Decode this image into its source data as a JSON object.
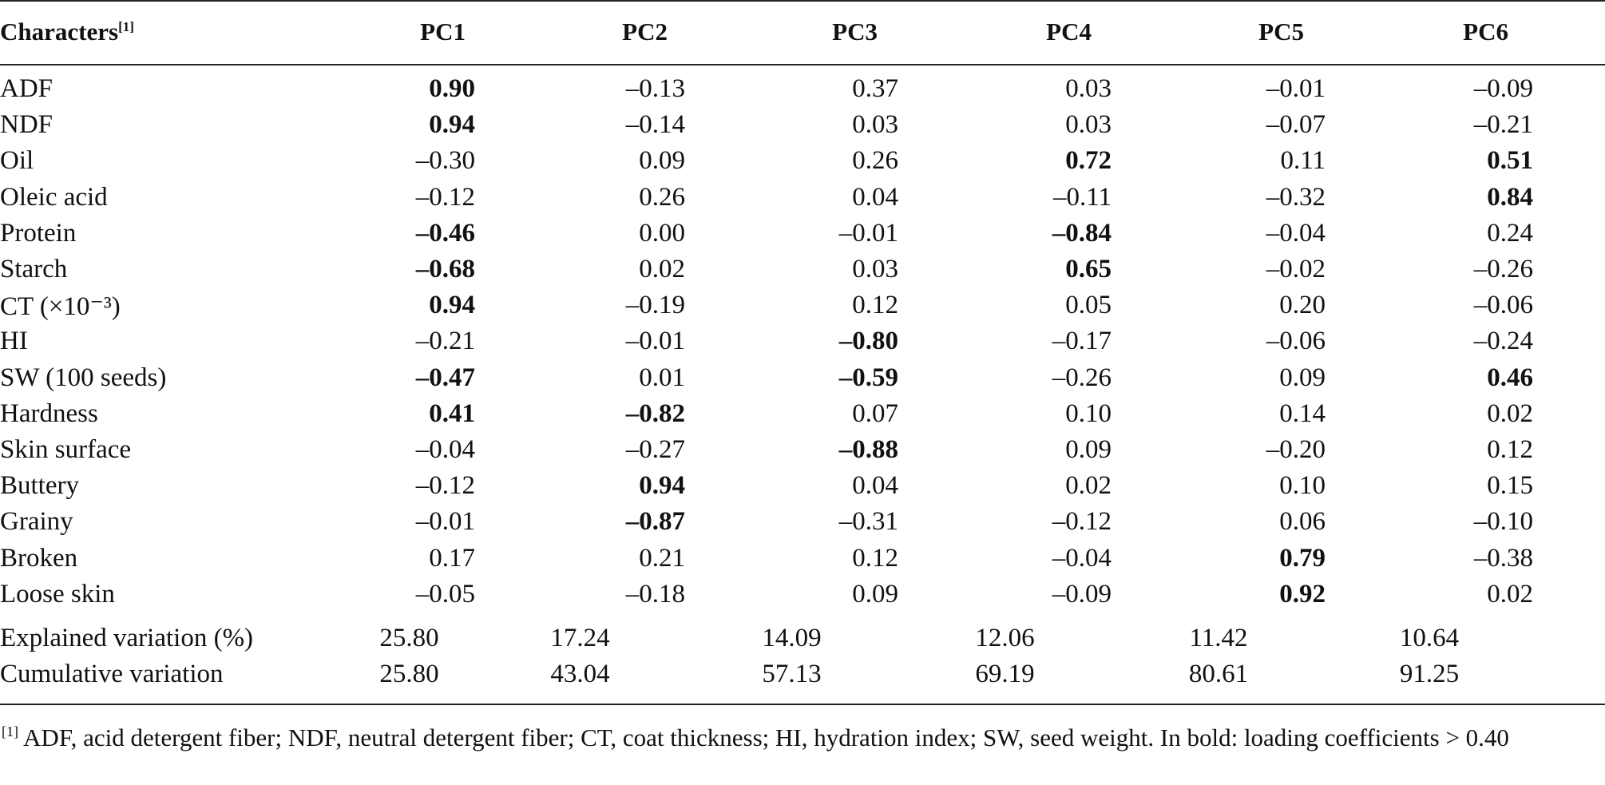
{
  "table": {
    "header": {
      "characters_label": "Characters",
      "footnote_marker": "[1]",
      "columns": [
        "PC1",
        "PC2",
        "PC3",
        "PC4",
        "PC5",
        "PC6"
      ]
    },
    "rows": [
      {
        "name": "ADF",
        "values": [
          "0.90",
          "–0.13",
          "0.37",
          "0.03",
          "–0.01",
          "–0.09"
        ],
        "bold": [
          true,
          false,
          false,
          false,
          false,
          false
        ]
      },
      {
        "name": "NDF",
        "values": [
          "0.94",
          "–0.14",
          "0.03",
          "0.03",
          "–0.07",
          "–0.21"
        ],
        "bold": [
          true,
          false,
          false,
          false,
          false,
          false
        ]
      },
      {
        "name": "Oil",
        "values": [
          "–0.30",
          "0.09",
          "0.26",
          "0.72",
          "0.11",
          "0.51"
        ],
        "bold": [
          false,
          false,
          false,
          true,
          false,
          true
        ]
      },
      {
        "name": "Oleic acid",
        "values": [
          "–0.12",
          "0.26",
          "0.04",
          "–0.11",
          "–0.32",
          "0.84"
        ],
        "bold": [
          false,
          false,
          false,
          false,
          false,
          true
        ]
      },
      {
        "name": "Protein",
        "values": [
          "–0.46",
          "0.00",
          "–0.01",
          "–0.84",
          "–0.04",
          "0.24"
        ],
        "bold": [
          true,
          false,
          false,
          true,
          false,
          false
        ]
      },
      {
        "name": "Starch",
        "values": [
          "–0.68",
          "0.02",
          "0.03",
          "0.65",
          "–0.02",
          "–0.26"
        ],
        "bold": [
          true,
          false,
          false,
          true,
          false,
          false
        ]
      },
      {
        "name": "CT (×10⁻³)",
        "values": [
          "0.94",
          "–0.19",
          "0.12",
          "0.05",
          "0.20",
          "–0.06"
        ],
        "bold": [
          true,
          false,
          false,
          false,
          false,
          false
        ]
      },
      {
        "name": "HI",
        "values": [
          "–0.21",
          "–0.01",
          "–0.80",
          "–0.17",
          "–0.06",
          "–0.24"
        ],
        "bold": [
          false,
          false,
          true,
          false,
          false,
          false
        ]
      },
      {
        "name": "SW (100 seeds)",
        "values": [
          "–0.47",
          "0.01",
          "–0.59",
          "–0.26",
          "0.09",
          "0.46"
        ],
        "bold": [
          true,
          false,
          true,
          false,
          false,
          true
        ]
      },
      {
        "name": "Hardness",
        "values": [
          "0.41",
          "–0.82",
          "0.07",
          "0.10",
          "0.14",
          "0.02"
        ],
        "bold": [
          true,
          true,
          false,
          false,
          false,
          false
        ]
      },
      {
        "name": "Skin surface",
        "values": [
          "–0.04",
          "–0.27",
          "–0.88",
          "0.09",
          "–0.20",
          "0.12"
        ],
        "bold": [
          false,
          false,
          true,
          false,
          false,
          false
        ]
      },
      {
        "name": "Buttery",
        "values": [
          "–0.12",
          "0.94",
          "0.04",
          "0.02",
          "0.10",
          "0.15"
        ],
        "bold": [
          false,
          true,
          false,
          false,
          false,
          false
        ]
      },
      {
        "name": "Grainy",
        "values": [
          "–0.01",
          "–0.87",
          "–0.31",
          "–0.12",
          "0.06",
          "–0.10"
        ],
        "bold": [
          false,
          true,
          false,
          false,
          false,
          false
        ]
      },
      {
        "name": "Broken",
        "values": [
          "0.17",
          "0.21",
          "0.12",
          "–0.04",
          "0.79",
          "–0.38"
        ],
        "bold": [
          false,
          false,
          false,
          false,
          true,
          false
        ]
      },
      {
        "name": "Loose skin",
        "values": [
          "–0.05",
          "–0.18",
          "0.09",
          "–0.09",
          "0.92",
          "0.02"
        ],
        "bold": [
          false,
          false,
          false,
          false,
          true,
          false
        ]
      }
    ],
    "summary": [
      {
        "name": "Explained variation (%)",
        "values": [
          "25.80",
          "17.24",
          "14.09",
          "12.06",
          "11.42",
          "10.64"
        ]
      },
      {
        "name": "Cumulative variation",
        "values": [
          "25.80",
          "43.04",
          "57.13",
          "69.19",
          "80.61",
          "91.25"
        ]
      }
    ]
  },
  "footnote": {
    "marker": "[1]",
    "text": " ADF, acid detergent fiber; NDF, neutral detergent fiber; CT, coat thickness; HI, hydration index; SW, seed weight. In bold: loading coefficients > 0.40"
  }
}
